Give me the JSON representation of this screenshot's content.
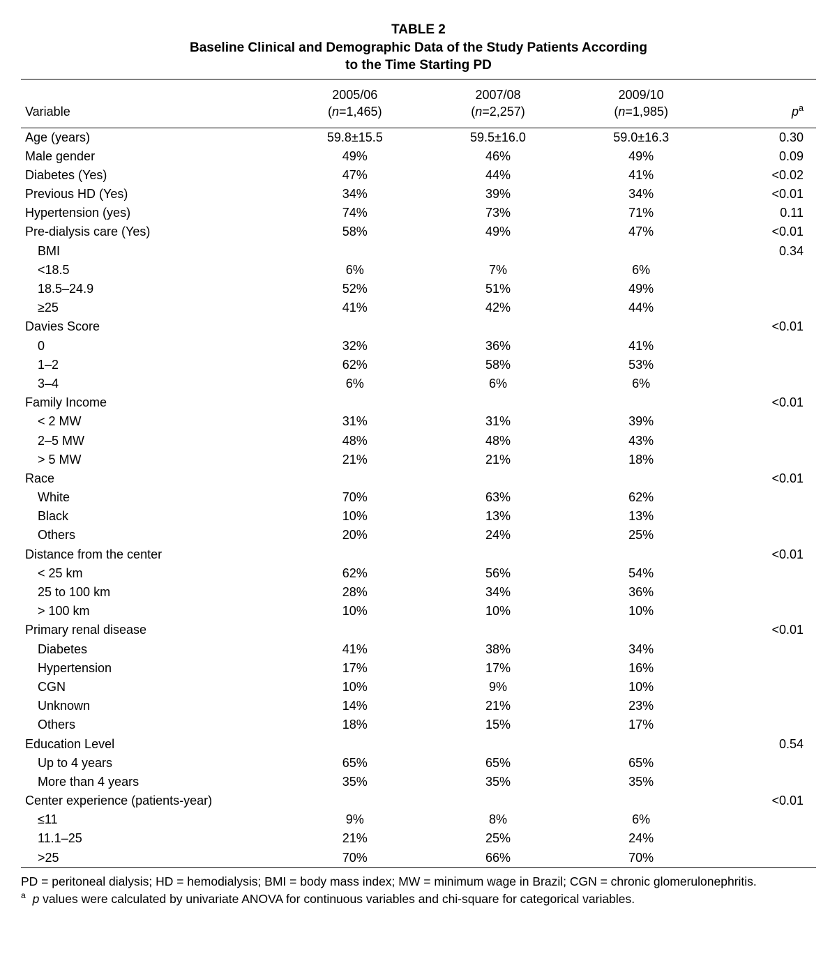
{
  "title_line1": "TABLE 2",
  "title_line2": "Baseline Clinical and Demographic Data of the Study Patients According",
  "title_line3": "to the Time Starting PD",
  "header": {
    "variable": "Variable",
    "period1_top": "2005/06",
    "period1_n_open": "(",
    "period1_n_label": "n",
    "period1_n_close": "=1,465)",
    "period2_top": "2007/08",
    "period2_n_open": "(",
    "period2_n_label": "n",
    "period2_n_close": "=2,257)",
    "period3_top": "2009/10",
    "period3_n_open": "(",
    "period3_n_label": "n",
    "period3_n_close": "=1,985)",
    "p_label": "p",
    "p_sup": "a"
  },
  "rows": [
    {
      "label": "Age (years)",
      "sub": false,
      "c1": "59.8±15.5",
      "c2": "59.5±16.0",
      "c3": "59.0±16.3",
      "p": "0.30"
    },
    {
      "label": "Male gender",
      "sub": false,
      "c1": "49%",
      "c2": "46%",
      "c3": "49%",
      "p": "0.09"
    },
    {
      "label": "Diabetes (Yes)",
      "sub": false,
      "c1": "47%",
      "c2": "44%",
      "c3": "41%",
      "p": "<0.02"
    },
    {
      "label": "Previous HD (Yes)",
      "sub": false,
      "c1": "34%",
      "c2": "39%",
      "c3": "34%",
      "p": "<0.01"
    },
    {
      "label": "Hypertension (yes)",
      "sub": false,
      "c1": "74%",
      "c2": "73%",
      "c3": "71%",
      "p": "0.11"
    },
    {
      "label": "Pre-dialysis care (Yes)",
      "sub": false,
      "c1": "58%",
      "c2": "49%",
      "c3": "47%",
      "p": "<0.01"
    },
    {
      "label": "BMI",
      "sub": true,
      "c1": "",
      "c2": "",
      "c3": "",
      "p": "0.34"
    },
    {
      "label": "<18.5",
      "sub": true,
      "c1": "6%",
      "c2": "7%",
      "c3": "6%",
      "p": ""
    },
    {
      "label": "18.5–24.9",
      "sub": true,
      "c1": "52%",
      "c2": "51%",
      "c3": "49%",
      "p": ""
    },
    {
      "label": "≥25",
      "sub": true,
      "c1": "41%",
      "c2": "42%",
      "c3": "44%",
      "p": ""
    },
    {
      "label": "Davies Score",
      "sub": false,
      "c1": "",
      "c2": "",
      "c3": "",
      "p": "<0.01"
    },
    {
      "label": "0",
      "sub": true,
      "c1": "32%",
      "c2": "36%",
      "c3": "41%",
      "p": ""
    },
    {
      "label": "1–2",
      "sub": true,
      "c1": "62%",
      "c2": "58%",
      "c3": "53%",
      "p": ""
    },
    {
      "label": "3–4",
      "sub": true,
      "c1": "6%",
      "c2": "6%",
      "c3": "6%",
      "p": ""
    },
    {
      "label": "Family Income",
      "sub": false,
      "c1": "",
      "c2": "",
      "c3": "",
      "p": "<0.01"
    },
    {
      "label": "< 2 MW",
      "sub": true,
      "c1": "31%",
      "c2": "31%",
      "c3": "39%",
      "p": ""
    },
    {
      "label": "2–5 MW",
      "sub": true,
      "c1": "48%",
      "c2": "48%",
      "c3": "43%",
      "p": ""
    },
    {
      "label": "> 5 MW",
      "sub": true,
      "c1": "21%",
      "c2": "21%",
      "c3": "18%",
      "p": ""
    },
    {
      "label": "Race",
      "sub": false,
      "c1": "",
      "c2": "",
      "c3": "",
      "p": "<0.01"
    },
    {
      "label": "White",
      "sub": true,
      "c1": "70%",
      "c2": "63%",
      "c3": "62%",
      "p": ""
    },
    {
      "label": "Black",
      "sub": true,
      "c1": "10%",
      "c2": "13%",
      "c3": "13%",
      "p": ""
    },
    {
      "label": "Others",
      "sub": true,
      "c1": "20%",
      "c2": "24%",
      "c3": "25%",
      "p": ""
    },
    {
      "label": "Distance from the center",
      "sub": false,
      "c1": "",
      "c2": "",
      "c3": "",
      "p": "<0.01"
    },
    {
      "label": "< 25 km",
      "sub": true,
      "c1": "62%",
      "c2": "56%",
      "c3": "54%",
      "p": ""
    },
    {
      "label": "25 to 100 km",
      "sub": true,
      "c1": "28%",
      "c2": "34%",
      "c3": "36%",
      "p": ""
    },
    {
      "label": "> 100 km",
      "sub": true,
      "c1": "10%",
      "c2": "10%",
      "c3": "10%",
      "p": ""
    },
    {
      "label": "Primary renal disease",
      "sub": false,
      "c1": "",
      "c2": "",
      "c3": "",
      "p": "<0.01"
    },
    {
      "label": "Diabetes",
      "sub": true,
      "c1": "41%",
      "c2": "38%",
      "c3": "34%",
      "p": ""
    },
    {
      "label": "Hypertension",
      "sub": true,
      "c1": "17%",
      "c2": "17%",
      "c3": "16%",
      "p": ""
    },
    {
      "label": "CGN",
      "sub": true,
      "c1": "10%",
      "c2": "9%",
      "c3": "10%",
      "p": ""
    },
    {
      "label": "Unknown",
      "sub": true,
      "c1": "14%",
      "c2": "21%",
      "c3": "23%",
      "p": ""
    },
    {
      "label": "Others",
      "sub": true,
      "c1": "18%",
      "c2": "15%",
      "c3": "17%",
      "p": ""
    },
    {
      "label": "Education Level",
      "sub": false,
      "c1": "",
      "c2": "",
      "c3": "",
      "p": "0.54"
    },
    {
      "label": "Up to 4 years",
      "sub": true,
      "c1": "65%",
      "c2": "65%",
      "c3": "65%",
      "p": ""
    },
    {
      "label": "More than 4 years",
      "sub": true,
      "c1": "35%",
      "c2": "35%",
      "c3": "35%",
      "p": ""
    },
    {
      "label": "Center experience (patients-year)",
      "sub": false,
      "c1": "",
      "c2": "",
      "c3": "",
      "p": "<0.01"
    },
    {
      "label": "≤11",
      "sub": true,
      "c1": "9%",
      "c2": "8%",
      "c3": "6%",
      "p": ""
    },
    {
      "label": "11.1–25",
      "sub": true,
      "c1": "21%",
      "c2": "25%",
      "c3": "24%",
      "p": ""
    },
    {
      "label": ">25",
      "sub": true,
      "c1": "70%",
      "c2": "66%",
      "c3": "70%",
      "p": ""
    }
  ],
  "footnote": {
    "abbrev": "PD = peritoneal dialysis; HD = hemodialysis; BMI = body mass index; MW = minimum wage in Brazil; CGN = chronic glomerulonephritis.",
    "sup": "a",
    "note_italic": "p",
    "note_rest": " values were calculated by univariate ANOVA for continuous variables and chi-square for categorical variables."
  }
}
